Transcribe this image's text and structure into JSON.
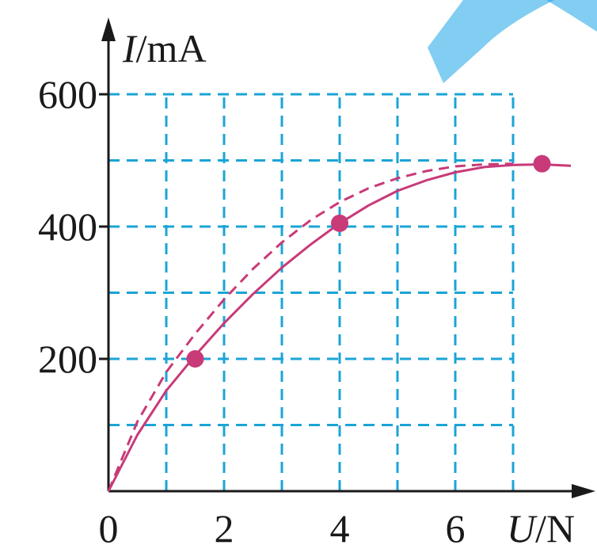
{
  "chart_data": {
    "type": "line",
    "xlabel": {
      "symbol": "U",
      "unit": "/N"
    },
    "ylabel": {
      "symbol": "I",
      "unit": "/mA"
    },
    "xlim": [
      0,
      8
    ],
    "ylim": [
      0,
      600
    ],
    "xticks": [
      "0",
      "2",
      "4",
      "6"
    ],
    "yticks": [
      "200",
      "400",
      "600"
    ],
    "grid": {
      "on": true,
      "x_step": 1,
      "y_step": 100,
      "style": "dashed",
      "color": "#1ba4d6"
    },
    "series": [
      {
        "style": "solid",
        "color": "#c83a78",
        "x": [
          0,
          0.5,
          1,
          1.5,
          2,
          2.5,
          3,
          3.5,
          4,
          4.5,
          5,
          5.5,
          6,
          6.5,
          7,
          7.5,
          8
        ],
        "y": [
          0,
          85,
          152,
          205,
          254,
          298,
          338,
          373,
          405,
          432,
          454,
          470,
          482,
          490,
          493,
          494,
          492
        ]
      },
      {
        "style": "dashed",
        "color": "#c83a78",
        "x": [
          0,
          0.5,
          1,
          1.5,
          2,
          2.5,
          3,
          3.5,
          4,
          4.5,
          5,
          5.5,
          6,
          6.5,
          7
        ],
        "y": [
          0,
          105,
          180,
          238,
          290,
          336,
          376,
          410,
          437,
          458,
          473,
          484,
          491,
          494,
          495
        ]
      }
    ],
    "points": [
      {
        "x": 1.5,
        "y": 200
      },
      {
        "x": 4,
        "y": 405
      },
      {
        "x": 7.5,
        "y": 495
      }
    ]
  },
  "colors": {
    "curve": "#c83a78",
    "grid": "#1ba4d6",
    "axis": "#1a1a1a",
    "watermark": "#1ba4e8"
  }
}
